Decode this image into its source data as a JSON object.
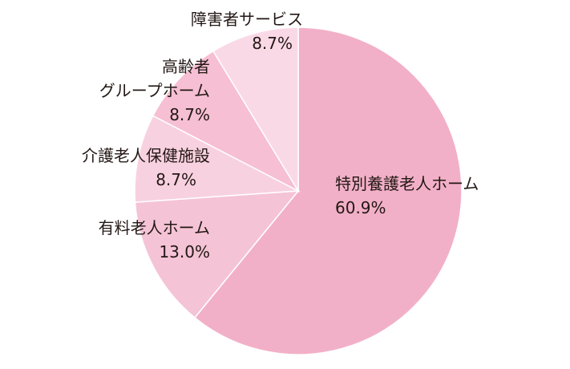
{
  "chart_data": {
    "type": "pie",
    "categories": [
      "特別養護老人ホーム",
      "有料老人ホーム",
      "介護老人保健施設",
      "高齢者グループホーム",
      "障害者サービス"
    ],
    "values": [
      60.9,
      13.0,
      8.7,
      8.7,
      8.7
    ],
    "value_labels": [
      "60.9%",
      "13.0%",
      "8.7%",
      "8.7%",
      "8.7%"
    ],
    "label_lines": [
      [
        "特別養護老人ホーム"
      ],
      [
        "有料老人ホーム"
      ],
      [
        "介護老人保健施設"
      ],
      [
        "高齢者",
        "グループホーム"
      ],
      [
        "障害者サービス"
      ]
    ],
    "colors": [
      "#f2b0c8",
      "#f5c3d6",
      "#f8d1e0",
      "#f6bfd3",
      "#fad9e6"
    ],
    "start_angle": "12 o'clock",
    "direction": "clockwise",
    "legend": "none"
  }
}
